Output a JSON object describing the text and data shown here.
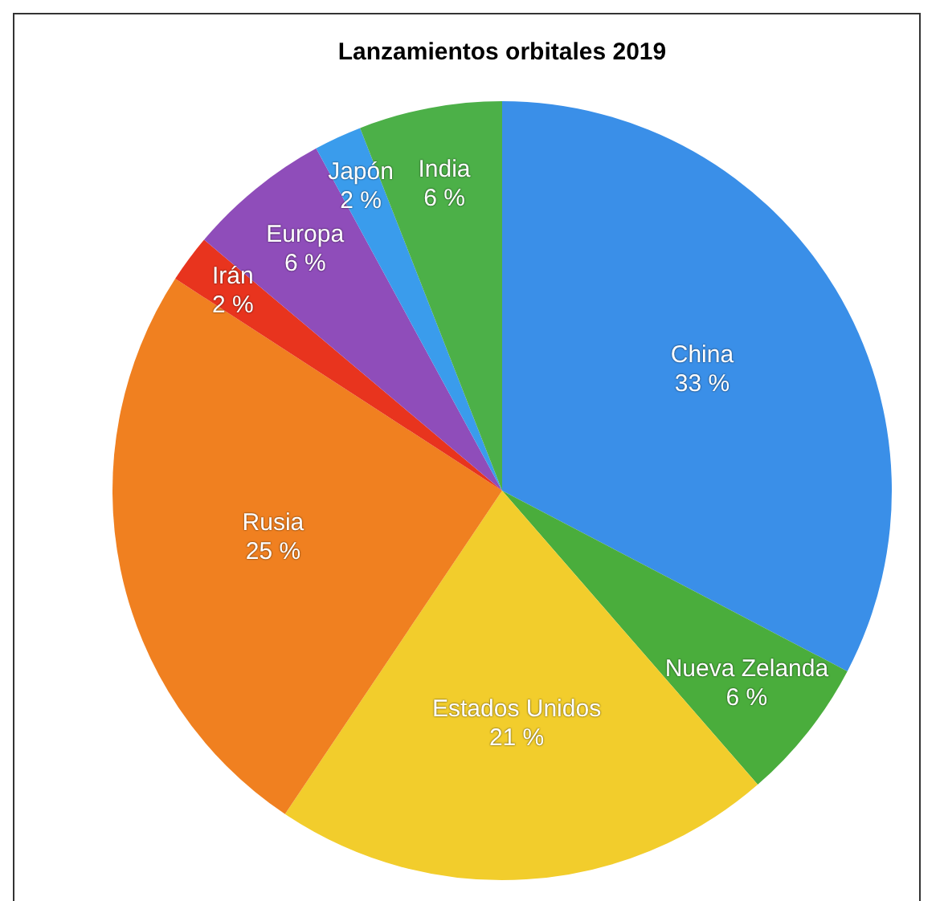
{
  "chart_data": {
    "type": "pie",
    "title": "Lanzamientos orbitales 2019",
    "categories": [
      "China",
      "Nueva Zelanda",
      "Estados Unidos",
      "Rusia",
      "Irán",
      "Europa",
      "Japón",
      "India"
    ],
    "values": [
      33,
      6,
      21,
      25,
      2,
      6,
      2,
      6
    ],
    "colors": [
      "#3a8fe8",
      "#4aad3c",
      "#f2cd2c",
      "#f08020",
      "#e8341e",
      "#8f4dba",
      "#3a9cec",
      "#4cb048"
    ],
    "value_labels": [
      "33 %",
      "6 %",
      "21 %",
      "25 %",
      "2 %",
      "6 %",
      "2 %",
      "6 %"
    ],
    "legend": false
  }
}
